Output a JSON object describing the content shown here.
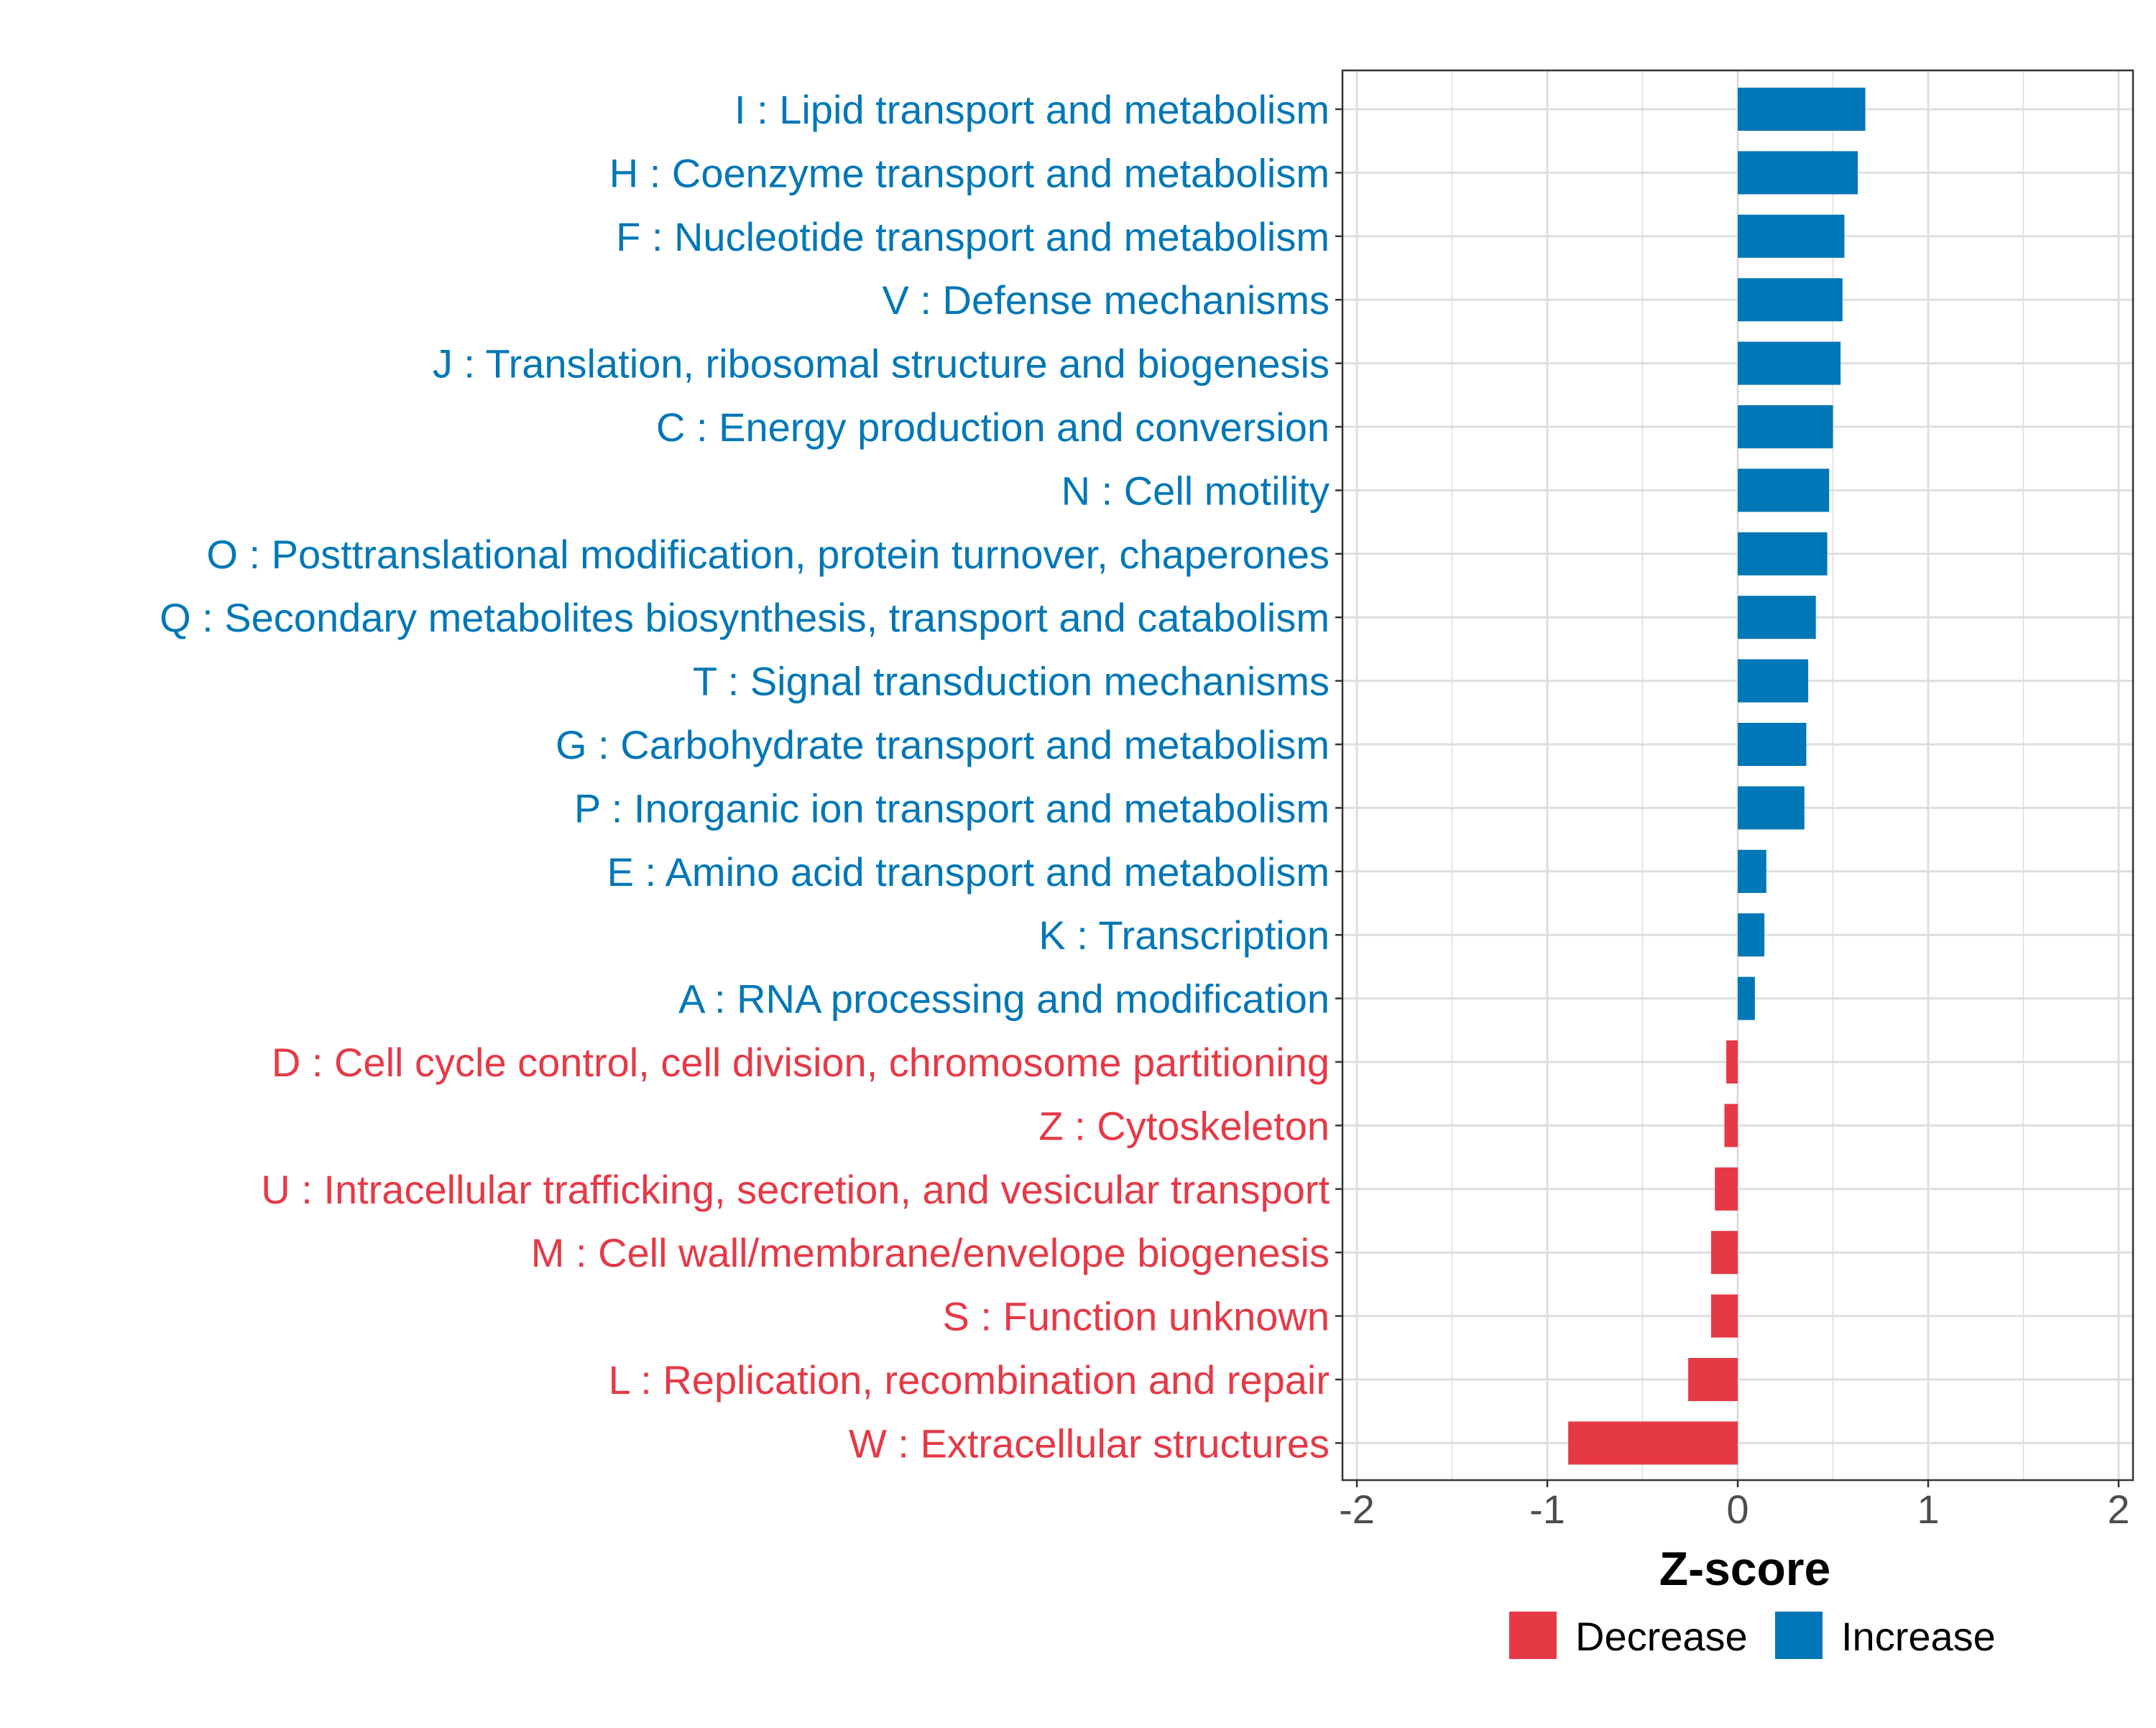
{
  "chart_data": {
    "type": "bar",
    "orientation": "horizontal",
    "xlabel": "Z-score",
    "xlim": [
      -2,
      2
    ],
    "xticks": [
      -2,
      -1,
      0,
      1,
      2
    ],
    "xtick_labels": [
      "-2",
      "-1",
      "0",
      "1",
      "2"
    ],
    "grid": true,
    "legend_position": "bottom",
    "legend": [
      {
        "key": "decrease",
        "label": "Decrease",
        "color": "#E63946"
      },
      {
        "key": "increase",
        "label": "Increase",
        "color": "#0077B6"
      }
    ],
    "categories": [
      {
        "label": "I : Lipid transport and metabolism",
        "value": 0.67,
        "group": "increase"
      },
      {
        "label": "H : Coenzyme transport and metabolism",
        "value": 0.63,
        "group": "increase"
      },
      {
        "label": "F : Nucleotide transport and metabolism",
        "value": 0.56,
        "group": "increase"
      },
      {
        "label": "V : Defense mechanisms",
        "value": 0.55,
        "group": "increase"
      },
      {
        "label": "J : Translation, ribosomal structure and biogenesis",
        "value": 0.54,
        "group": "increase"
      },
      {
        "label": "C : Energy production and conversion",
        "value": 0.5,
        "group": "increase"
      },
      {
        "label": "N : Cell motility",
        "value": 0.48,
        "group": "increase"
      },
      {
        "label": "O : Posttranslational modification, protein turnover, chaperones",
        "value": 0.47,
        "group": "increase"
      },
      {
        "label": "Q : Secondary metabolites biosynthesis, transport and catabolism",
        "value": 0.41,
        "group": "increase"
      },
      {
        "label": "T : Signal transduction mechanisms",
        "value": 0.37,
        "group": "increase"
      },
      {
        "label": "G : Carbohydrate transport and metabolism",
        "value": 0.36,
        "group": "increase"
      },
      {
        "label": "P : Inorganic ion transport and metabolism",
        "value": 0.35,
        "group": "increase"
      },
      {
        "label": "E : Amino acid transport and metabolism",
        "value": 0.15,
        "group": "increase"
      },
      {
        "label": "K : Transcription",
        "value": 0.14,
        "group": "increase"
      },
      {
        "label": "A : RNA processing and modification",
        "value": 0.09,
        "group": "increase"
      },
      {
        "label": "D : Cell cycle control, cell division, chromosome partitioning",
        "value": -0.06,
        "group": "decrease"
      },
      {
        "label": "Z : Cytoskeleton",
        "value": -0.07,
        "group": "decrease"
      },
      {
        "label": "U : Intracellular trafficking, secretion, and vesicular transport",
        "value": -0.12,
        "group": "decrease"
      },
      {
        "label": "M : Cell wall/membrane/envelope biogenesis",
        "value": -0.14,
        "group": "decrease"
      },
      {
        "label": "S : Function unknown",
        "value": -0.14,
        "group": "decrease"
      },
      {
        "label": "L : Replication, recombination and repair",
        "value": -0.26,
        "group": "decrease"
      },
      {
        "label": "W : Extracellular structures",
        "value": -0.89,
        "group": "decrease"
      }
    ]
  }
}
